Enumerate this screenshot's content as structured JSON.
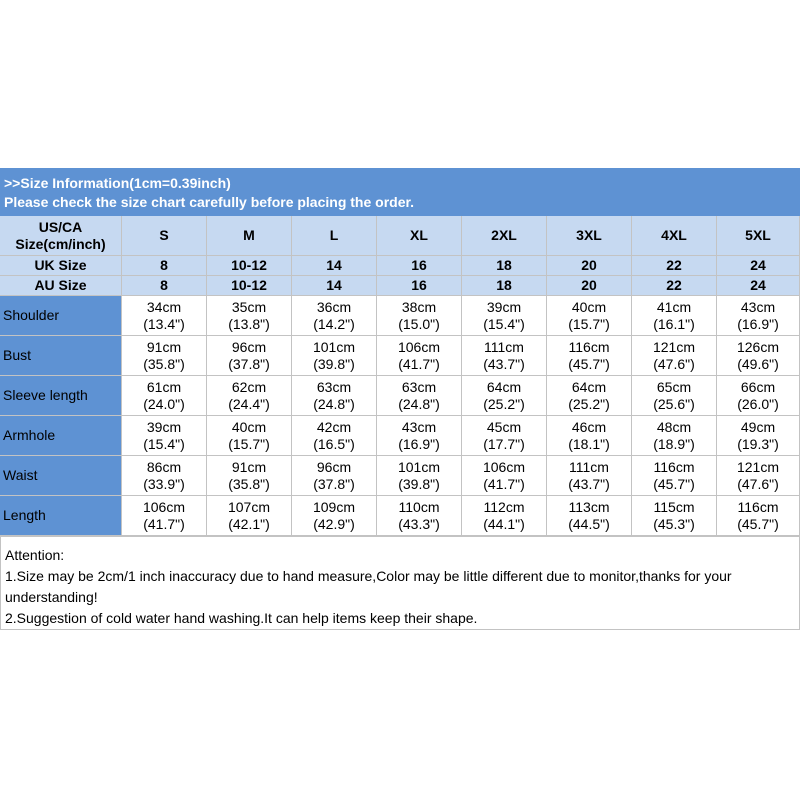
{
  "header": {
    "lines": [
      ">>Size Information(1cm=0.39inch)",
      "Please check the size chart carefully before placing the order."
    ]
  },
  "table": {
    "head_label": [
      "US/CA",
      "Size(cm/inch)"
    ],
    "sizes": [
      "S",
      "M",
      "L",
      "XL",
      "2XL",
      "3XL",
      "4XL",
      "5XL"
    ],
    "extra_rows": [
      {
        "label": "UK Size",
        "values": [
          "8",
          "10-12",
          "14",
          "16",
          "18",
          "20",
          "22",
          "24"
        ]
      },
      {
        "label": "AU Size",
        "values": [
          "8",
          "10-12",
          "14",
          "16",
          "18",
          "20",
          "22",
          "24"
        ]
      }
    ],
    "rows": [
      {
        "label": "Shoulder",
        "cm": [
          "34cm",
          "35cm",
          "36cm",
          "38cm",
          "39cm",
          "40cm",
          "41cm",
          "43cm"
        ],
        "inch": [
          "(13.4\")",
          "(13.8\")",
          "(14.2\")",
          "(15.0\")",
          "(15.4\")",
          "(15.7\")",
          "(16.1\")",
          "(16.9\")"
        ]
      },
      {
        "label": "Bust",
        "cm": [
          "91cm",
          "96cm",
          "101cm",
          "106cm",
          "111cm",
          "116cm",
          "121cm",
          "126cm"
        ],
        "inch": [
          "(35.8\")",
          "(37.8\")",
          "(39.8\")",
          "(41.7\")",
          "(43.7\")",
          "(45.7\")",
          "(47.6\")",
          "(49.6\")"
        ]
      },
      {
        "label": "Sleeve length",
        "cm": [
          "61cm",
          "62cm",
          "63cm",
          "63cm",
          "64cm",
          "64cm",
          "65cm",
          "66cm"
        ],
        "inch": [
          "(24.0\")",
          "(24.4\")",
          "(24.8\")",
          "(24.8\")",
          "(25.2\")",
          "(25.2\")",
          "(25.6\")",
          "(26.0\")"
        ]
      },
      {
        "label": "Armhole",
        "cm": [
          "39cm",
          "40cm",
          "42cm",
          "43cm",
          "45cm",
          "46cm",
          "48cm",
          "49cm"
        ],
        "inch": [
          "(15.4\")",
          "(15.7\")",
          "(16.5\")",
          "(16.9\")",
          "(17.7\")",
          "(18.1\")",
          "(18.9\")",
          "(19.3\")"
        ]
      },
      {
        "label": "Waist",
        "cm": [
          "86cm",
          "91cm",
          "96cm",
          "101cm",
          "106cm",
          "111cm",
          "116cm",
          "121cm"
        ],
        "inch": [
          "(33.9\")",
          "(35.8\")",
          "(37.8\")",
          "(39.8\")",
          "(41.7\")",
          "(43.7\")",
          "(45.7\")",
          "(47.6\")"
        ]
      },
      {
        "label": "Length",
        "cm": [
          "106cm",
          "107cm",
          "109cm",
          "110cm",
          "112cm",
          "113cm",
          "115cm",
          "116cm"
        ],
        "inch": [
          "(41.7\")",
          "(42.1\")",
          "(42.9\")",
          "(43.3\")",
          "(44.1\")",
          "(44.5\")",
          "(45.3\")",
          "(45.7\")"
        ]
      }
    ]
  },
  "notes": {
    "lines": [
      "Attention:",
      "1.Size may be 2cm/1 inch inaccuracy due to hand measure,Color may be little different due to monitor,thanks for your understanding!",
      "2.Suggestion of cold water hand washing.It can help items keep their shape."
    ]
  }
}
